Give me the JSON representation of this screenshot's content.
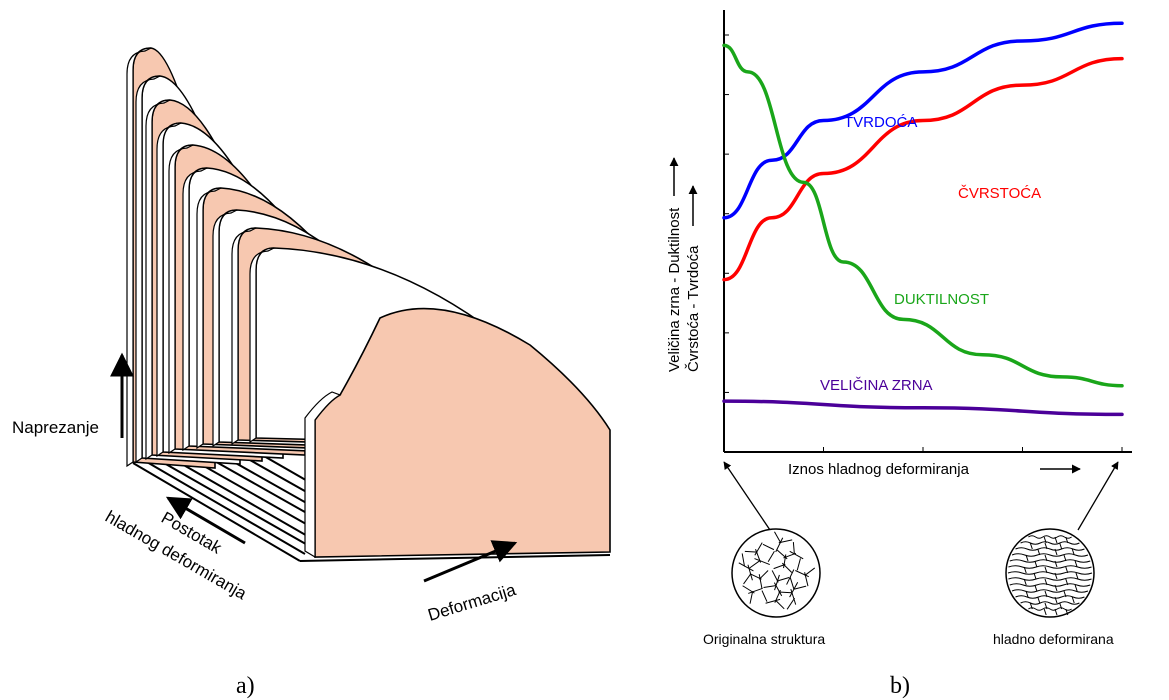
{
  "figure_a": {
    "caption": "a)",
    "axis_stress": "Naprezanje",
    "axis_percent_line1": "Postotak",
    "axis_percent_line2": "hladnog deformiranja",
    "axis_strain": "Deformacija",
    "colors": {
      "pink": "#f7c8b0",
      "white": "#ffffff",
      "outline": "#000000"
    }
  },
  "figure_b": {
    "caption": "b)",
    "ylabel_line1": "Veličina zrna - Duktilnost",
    "ylabel_line2": "Čvrstoća - Tvrdoća",
    "xlabel": "Iznos hladnog deformiranja",
    "micro_left_label": "Originalna struktura",
    "micro_right_label": "hladno deformirana",
    "icons": [
      "grain-structure-icon",
      "deformed-grain-icon"
    ]
  },
  "chart_data": {
    "type": "line",
    "xlabel": "Iznos hladnog deformiranja",
    "ylabel": "Veličina zrna - Duktilnost / Čvrstoća - Tvrdoća",
    "grid": false,
    "x_ticks": 5,
    "y_ticks": 7,
    "series": [
      {
        "name": "TVRDOĆA",
        "color": "#0000ff",
        "points": [
          [
            0,
            0.53
          ],
          [
            0.12,
            0.66
          ],
          [
            0.25,
            0.75
          ],
          [
            0.5,
            0.86
          ],
          [
            0.75,
            0.93
          ],
          [
            1,
            0.97
          ]
        ]
      },
      {
        "name": "ČVRSTOĆA",
        "color": "#ff0000",
        "points": [
          [
            0,
            0.39
          ],
          [
            0.12,
            0.53
          ],
          [
            0.25,
            0.63
          ],
          [
            0.5,
            0.75
          ],
          [
            0.75,
            0.83
          ],
          [
            1,
            0.89
          ]
        ]
      },
      {
        "name": "DUKTILNOST",
        "color": "#1aa61a",
        "points": [
          [
            0,
            0.92
          ],
          [
            0.06,
            0.86
          ],
          [
            0.2,
            0.61
          ],
          [
            0.3,
            0.43
          ],
          [
            0.45,
            0.3
          ],
          [
            0.65,
            0.22
          ],
          [
            0.85,
            0.17
          ],
          [
            1,
            0.15
          ]
        ]
      },
      {
        "name": "VELIČINA ZRNA",
        "color": "#4b0099",
        "points": [
          [
            0,
            0.115
          ],
          [
            0.5,
            0.1
          ],
          [
            1,
            0.085
          ]
        ]
      }
    ]
  }
}
